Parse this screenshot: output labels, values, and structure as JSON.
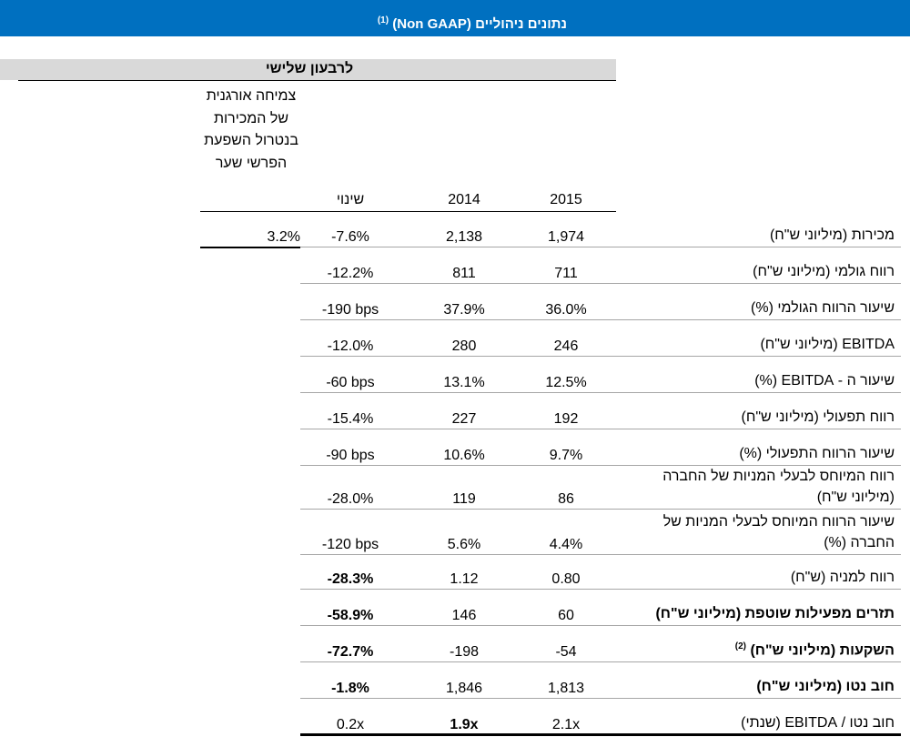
{
  "header": {
    "title": "נתונים ניהוליים (Non GAAP)",
    "footnote": "(1)"
  },
  "period": "לרבעון שלישי",
  "columns": {
    "organic": "צמיחה אורגנית של המכירות בנטרול השפעת הפרשי שער",
    "change": "שינוי",
    "y2014": "2014",
    "y2015": "2015"
  },
  "colors": {
    "banner": "#0070c0",
    "band": "#d9d9d9",
    "rule": "#a6a6a6"
  },
  "rows": [
    {
      "label": "מכירות (מיליוני ש\"ח)",
      "y2015": "1,974",
      "y2014": "2,138",
      "change": "-7.6%",
      "organic": "3.2%"
    },
    {
      "label": "רווח גולמי (מיליוני ש\"ח)",
      "y2015": "711",
      "y2014": "811",
      "change": "-12.2%"
    },
    {
      "label": "שיעור הרווח הגולמי (%)",
      "y2015": "36.0%",
      "y2014": "37.9%",
      "change": "-190 bps"
    },
    {
      "label": "EBITDA (מיליוני ש\"ח)",
      "y2015": "246",
      "y2014": "280",
      "change": "-12.0%"
    },
    {
      "label": "שיעור ה - EBITDA (%)",
      "y2015": "12.5%",
      "y2014": "13.1%",
      "change": "-60 bps"
    },
    {
      "label": "רווח תפעולי (מיליוני ש\"ח)",
      "y2015": "192",
      "y2014": "227",
      "change": "-15.4%"
    },
    {
      "label": "שיעור הרווח התפעולי (%)",
      "y2015": "9.7%",
      "y2014": "10.6%",
      "change": "-90 bps"
    },
    {
      "label": "רווח המיוחס לבעלי המניות של החברה (מיליוני ש\"ח)",
      "y2015": "86",
      "y2014": "119",
      "change": "-28.0%"
    },
    {
      "label": "שיעור הרווח המיוחס לבעלי המניות של החברה (%)",
      "y2015": "4.4%",
      "y2014": "5.6%",
      "change": "-120 bps"
    },
    {
      "label": "רווח למניה (ש\"ח)",
      "y2015": "0.80",
      "y2014": "1.12",
      "change": "-28.3%"
    },
    {
      "label": "תזרים מפעילות שוטפת (מיליוני ש\"ח)",
      "y2015": "60",
      "y2014": "146",
      "change": "-58.9%"
    },
    {
      "label": "השקעות (מיליוני ש\"ח)",
      "footnote": "(2)",
      "y2015": "-54",
      "y2014": "-198",
      "change": "-72.7%"
    },
    {
      "label": "חוב נטו (מיליוני ש\"ח)",
      "y2015": "1,813",
      "y2014": "1,846",
      "change": "-1.8%"
    },
    {
      "label": "חוב נטו / EBITDA (שנתי)",
      "y2015": "2.1x",
      "y2014": "1.9x",
      "change": "0.2x"
    }
  ]
}
